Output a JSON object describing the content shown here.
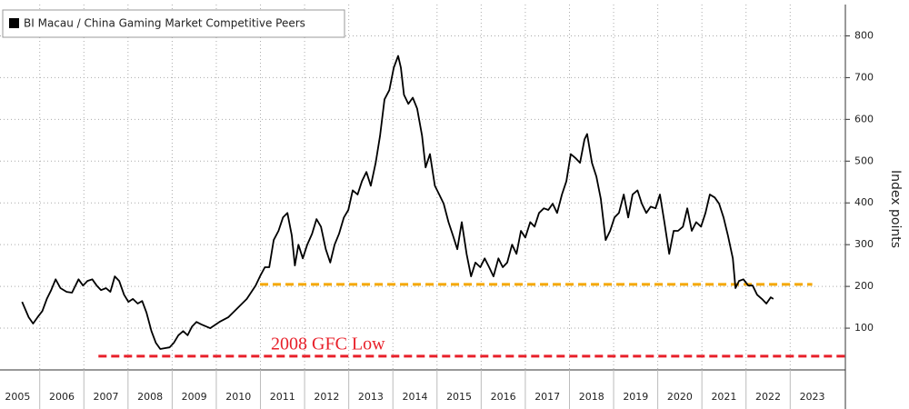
{
  "chart_data": {
    "type": "line",
    "legend": "BI Macau / China Gaming Market Competitive Peers",
    "ylabel": "Index points",
    "annotation": "2008 GFC Low",
    "series": [
      {
        "name": "BI Macau / China Gaming Market Competitive Peers",
        "color": "#000000",
        "x": [
          2005.6,
          2005.75,
          2005.85,
          2005.95,
          2006.06,
          2006.16,
          2006.26,
          2006.36,
          2006.47,
          2006.61,
          2006.73,
          2006.88,
          2006.98,
          2007.08,
          2007.19,
          2007.29,
          2007.39,
          2007.5,
          2007.6,
          2007.7,
          2007.8,
          2007.91,
          2008.01,
          2008.11,
          2008.22,
          2008.32,
          2008.42,
          2008.53,
          2008.63,
          2008.73,
          2008.83,
          2008.94,
          2009.04,
          2009.14,
          2009.25,
          2009.35,
          2009.45,
          2009.55,
          2009.66,
          2009.86,
          2010.07,
          2010.27,
          2010.48,
          2010.69,
          2010.89,
          2010.99,
          2011.1,
          2011.2,
          2011.3,
          2011.41,
          2011.51,
          2011.61,
          2011.71,
          2011.78,
          2011.86,
          2011.96,
          2012.06,
          2012.17,
          2012.27,
          2012.37,
          2012.48,
          2012.58,
          2012.68,
          2012.78,
          2012.89,
          2012.99,
          2013.09,
          2013.2,
          2013.3,
          2013.4,
          2013.5,
          2013.61,
          2013.71,
          2013.81,
          2013.92,
          2014.02,
          2014.12,
          2014.18,
          2014.25,
          2014.35,
          2014.45,
          2014.55,
          2014.66,
          2014.74,
          2014.84,
          2014.95,
          2015.05,
          2015.15,
          2015.26,
          2015.36,
          2015.46,
          2015.56,
          2015.67,
          2015.77,
          2015.87,
          2015.98,
          2016.08,
          2016.18,
          2016.28,
          2016.39,
          2016.49,
          2016.59,
          2016.7,
          2016.8,
          2016.9,
          2017.0,
          2017.11,
          2017.21,
          2017.31,
          2017.42,
          2017.52,
          2017.62,
          2017.72,
          2017.83,
          2017.93,
          2018.03,
          2018.14,
          2018.24,
          2018.34,
          2018.4,
          2018.51,
          2018.61,
          2018.71,
          2018.82,
          2018.92,
          2019.02,
          2019.12,
          2019.23,
          2019.33,
          2019.43,
          2019.54,
          2019.64,
          2019.74,
          2019.84,
          2019.95,
          2020.05,
          2020.15,
          2020.26,
          2020.36,
          2020.46,
          2020.57,
          2020.67,
          2020.77,
          2020.87,
          2020.98,
          2021.08,
          2021.18,
          2021.29,
          2021.39,
          2021.49,
          2021.59,
          2021.7,
          2021.76,
          2021.84,
          2021.94,
          2022.05,
          2022.15,
          2022.25,
          2022.36,
          2022.46,
          2022.56,
          2022.62
        ],
        "values": [
          163,
          126,
          111,
          126,
          141,
          170,
          191,
          217,
          196,
          187,
          185,
          217,
          202,
          213,
          217,
          202,
          191,
          196,
          187,
          224,
          213,
          180,
          163,
          170,
          159,
          165,
          137,
          93,
          65,
          50,
          52,
          54,
          65,
          83,
          93,
          83,
          104,
          115,
          109,
          100,
          115,
          126,
          148,
          170,
          202,
          224,
          246,
          246,
          311,
          333,
          365,
          376,
          322,
          250,
          300,
          267,
          300,
          326,
          361,
          343,
          289,
          257,
          300,
          326,
          365,
          383,
          430,
          420,
          452,
          474,
          441,
          496,
          561,
          648,
          670,
          724,
          752,
          724,
          659,
          637,
          652,
          626,
          561,
          485,
          517,
          441,
          420,
          398,
          354,
          322,
          289,
          354,
          278,
          224,
          257,
          246,
          267,
          246,
          224,
          267,
          246,
          257,
          300,
          278,
          333,
          317,
          354,
          343,
          376,
          387,
          383,
          398,
          376,
          420,
          452,
          517,
          507,
          496,
          552,
          565,
          496,
          463,
          409,
          311,
          333,
          365,
          376,
          420,
          365,
          420,
          430,
          398,
          376,
          391,
          387,
          420,
          354,
          278,
          333,
          333,
          343,
          387,
          333,
          354,
          343,
          376,
          420,
          413,
          398,
          365,
          322,
          267,
          196,
          213,
          217,
          202,
          202,
          180,
          170,
          159,
          174,
          170
        ]
      }
    ],
    "hlines": [
      {
        "value": 205,
        "color": "#f5a800",
        "x": [
          2010.99,
          2023.5
        ]
      },
      {
        "value": 33,
        "color": "#e8202a",
        "x": [
          2007.33,
          2024.25
        ]
      }
    ],
    "xlim": [
      2005.1,
      2024.25
    ],
    "xticks": [
      {
        "value": 2005.5,
        "label": "2005"
      },
      {
        "value": 2006.5,
        "label": "2006"
      },
      {
        "value": 2007.5,
        "label": "2007"
      },
      {
        "value": 2008.5,
        "label": "2008"
      },
      {
        "value": 2009.5,
        "label": "2009"
      },
      {
        "value": 2010.5,
        "label": "2010"
      },
      {
        "value": 2011.5,
        "label": "2011"
      },
      {
        "value": 2012.5,
        "label": "2012"
      },
      {
        "value": 2013.5,
        "label": "2013"
      },
      {
        "value": 2014.5,
        "label": "2014"
      },
      {
        "value": 2015.5,
        "label": "2015"
      },
      {
        "value": 2016.5,
        "label": "2016"
      },
      {
        "value": 2017.5,
        "label": "2017"
      },
      {
        "value": 2018.5,
        "label": "2018"
      },
      {
        "value": 2019.5,
        "label": "2019"
      },
      {
        "value": 2020.5,
        "label": "2020"
      },
      {
        "value": 2021.5,
        "label": "2021"
      },
      {
        "value": 2022.5,
        "label": "2022"
      },
      {
        "value": 2023.5,
        "label": "2023"
      }
    ],
    "ylim": [
      0,
      875
    ],
    "yticks": [
      100,
      200,
      300,
      400,
      500,
      600,
      700,
      800
    ],
    "grid": true
  }
}
